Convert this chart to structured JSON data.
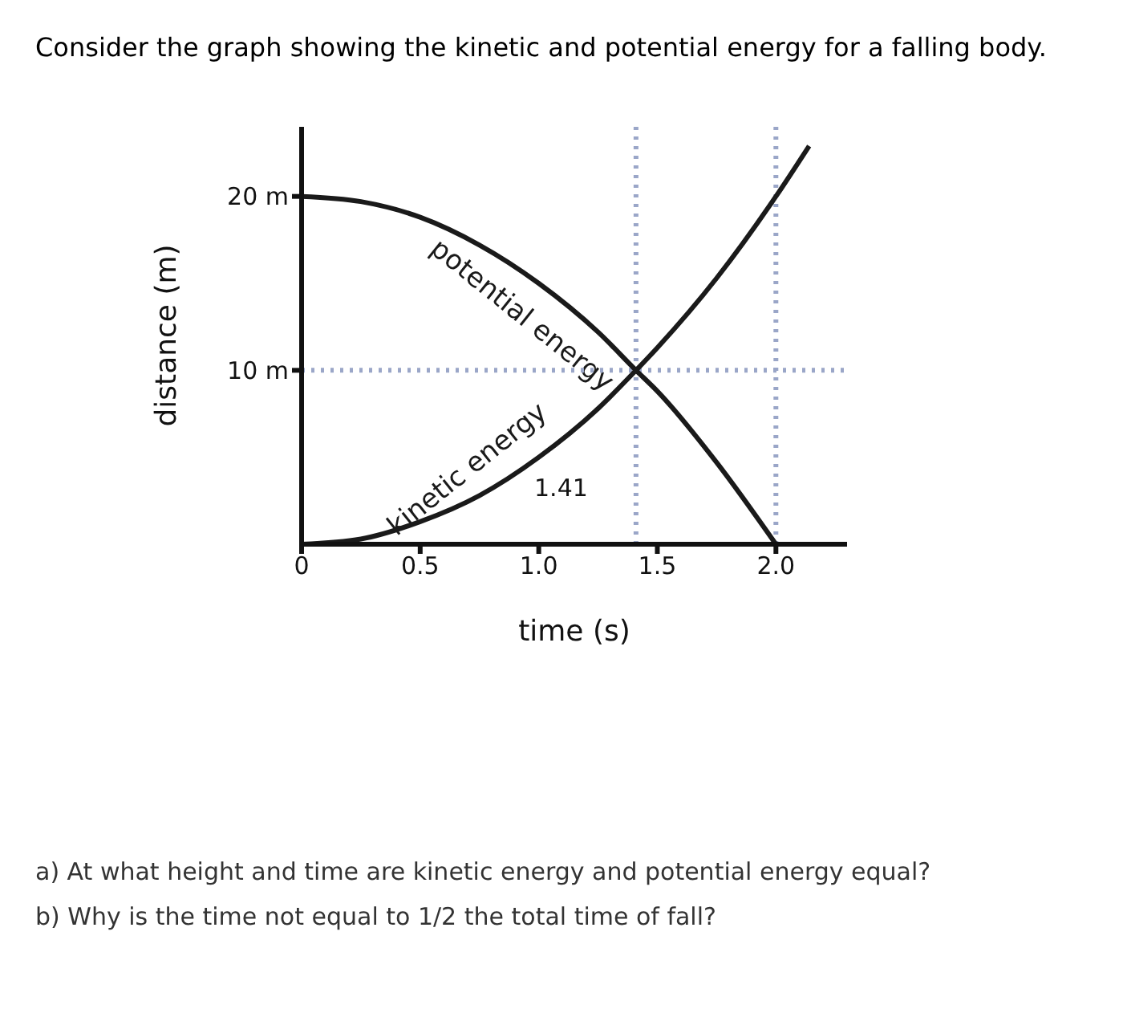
{
  "chart_data": {
    "type": "line",
    "title": "Consider the graph showing the kinetic and potential energy for a falling body.",
    "xlabel": "time (s)",
    "ylabel": "distance (m)",
    "series": [
      {
        "name": "potential energy",
        "color": "#1a1a1a",
        "x": [
          0,
          0.25,
          0.5,
          0.75,
          1,
          1.25,
          1.41,
          1.5,
          1.75,
          2
        ],
        "values": [
          20,
          19.7,
          18.8,
          17.2,
          15,
          12.2,
          10,
          8.8,
          4.7,
          0
        ]
      },
      {
        "name": "kinetic energy",
        "color": "#1a1a1a",
        "x": [
          0,
          0.25,
          0.5,
          0.75,
          1,
          1.25,
          1.41,
          1.5,
          1.75,
          2,
          2.14
        ],
        "values": [
          0,
          0.3,
          1.3,
          2.8,
          5,
          7.8,
          10,
          11.3,
          15.3,
          20,
          22.9
        ]
      }
    ],
    "xlim": [
      0,
      2.3
    ],
    "ylim": [
      0,
      24
    ],
    "xticks": [
      0,
      0.5,
      {
        "value": 1,
        "label": "1.0"
      },
      1.5,
      {
        "value": 2,
        "label": "2.0"
      }
    ],
    "yticks": [
      {
        "value": 10,
        "label": "10 m"
      },
      {
        "value": 20,
        "label": "20 m"
      }
    ],
    "ref_lines": [
      {
        "axis": "x",
        "value": 1.41,
        "label": "1.41",
        "color": "#9aa6c8",
        "line_style": "dotted"
      },
      {
        "axis": "y",
        "value": 10,
        "label": null,
        "color": "#9aa6c8",
        "line_style": "dotted"
      },
      {
        "axis": "x",
        "value": 2,
        "label": null,
        "color": "#9aa6c8",
        "line_style": "dotted"
      }
    ],
    "annotations": [
      "a) At what height and time are kinetic energy and potential energy equal?",
      "b) Why is the time not equal to 1/2 the total time of fall?"
    ],
    "marker": "none",
    "line_style": "solid"
  }
}
